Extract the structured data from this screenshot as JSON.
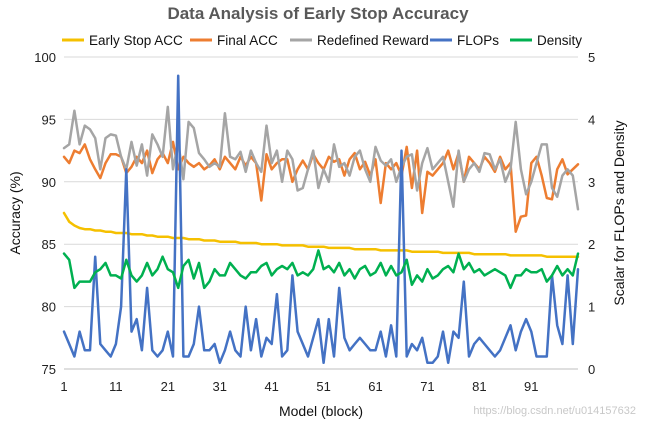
{
  "chart_data": {
    "type": "line",
    "title": "Data Analysis of Early Stop Accuracy",
    "xlabel": "Model (block)",
    "ylabel": "Accuracy (%)",
    "y2label": "Scalar for FLOPs and Density",
    "xlim": [
      1,
      100
    ],
    "ylim": [
      75,
      100
    ],
    "y2lim": [
      0,
      5
    ],
    "x_ticks": [
      1,
      11,
      21,
      31,
      41,
      51,
      61,
      71,
      81,
      91
    ],
    "y_ticks": [
      75,
      80,
      85,
      90,
      95,
      100
    ],
    "y2_ticks": [
      0,
      1,
      2,
      3,
      4,
      5
    ],
    "grid": true,
    "legend_position": "top",
    "series": [
      {
        "name": "Early Stop ACC",
        "color": "#f5c000",
        "axis": "left",
        "values": [
          87.5,
          86.8,
          86.5,
          86.3,
          86.2,
          86.2,
          86.1,
          86.1,
          86.0,
          86.0,
          85.9,
          85.9,
          85.9,
          85.8,
          85.8,
          85.8,
          85.7,
          85.7,
          85.6,
          85.6,
          85.6,
          85.5,
          85.5,
          85.5,
          85.4,
          85.4,
          85.4,
          85.3,
          85.3,
          85.3,
          85.2,
          85.2,
          85.2,
          85.2,
          85.1,
          85.1,
          85.1,
          85.1,
          85.0,
          85.0,
          85.0,
          85.0,
          84.9,
          84.9,
          84.9,
          84.9,
          84.9,
          84.8,
          84.8,
          84.8,
          84.8,
          84.7,
          84.7,
          84.7,
          84.7,
          84.7,
          84.6,
          84.6,
          84.6,
          84.6,
          84.6,
          84.5,
          84.5,
          84.5,
          84.5,
          84.5,
          84.5,
          84.4,
          84.4,
          84.4,
          84.4,
          84.4,
          84.4,
          84.3,
          84.3,
          84.3,
          84.3,
          84.3,
          84.3,
          84.2,
          84.2,
          84.2,
          84.2,
          84.2,
          84.2,
          84.2,
          84.1,
          84.1,
          84.1,
          84.1,
          84.1,
          84.1,
          84.1,
          84.0,
          84.0,
          84.0,
          84.0,
          84.0,
          84.0,
          84.0
        ]
      },
      {
        "name": "Final ACC",
        "color": "#ed7d31",
        "axis": "left",
        "values": [
          92.0,
          91.5,
          92.5,
          92.3,
          93.0,
          91.8,
          91.0,
          90.3,
          91.5,
          92.2,
          92.2,
          92.0,
          90.7,
          91.2,
          92.0,
          91.5,
          92.5,
          90.7,
          91.8,
          92.3,
          91.5,
          93.2,
          91.0,
          92.0,
          91.5,
          91.2,
          91.5,
          91.0,
          91.3,
          91.8,
          91.0,
          92.0,
          91.5,
          91.0,
          92.0,
          91.3,
          92.0,
          91.5,
          88.5,
          92.2,
          91.0,
          91.5,
          91.8,
          91.8,
          90.0,
          91.0,
          91.7,
          91.0,
          92.2,
          91.5,
          91.0,
          92.0,
          91.6,
          91.8,
          90.5,
          91.8,
          92.3,
          91.0,
          91.6,
          90.5,
          91.8,
          88.3,
          91.5,
          91.0,
          91.5,
          90.5,
          92.8,
          89.5,
          92.5,
          87.5,
          90.8,
          90.5,
          91.0,
          91.5,
          92.5,
          91.0,
          92.3,
          90.0,
          92.0,
          91.5,
          91.0,
          92.0,
          91.5,
          90.8,
          92.0,
          91.0,
          91.5,
          86.0,
          87.2,
          87.3,
          91.5,
          92.0,
          90.5,
          88.7,
          88.6,
          91.0,
          91.8,
          90.6,
          91.0,
          91.4
        ]
      },
      {
        "name": "Redefined Reward",
        "color": "#a5a5a5",
        "axis": "left",
        "values": [
          92.7,
          93.0,
          95.7,
          93.0,
          94.5,
          94.2,
          93.5,
          91.0,
          93.5,
          93.8,
          93.7,
          92.0,
          91.0,
          93.2,
          91.3,
          93.0,
          90.5,
          93.8,
          93.0,
          92.0,
          96.0,
          91.0,
          93.2,
          90.2,
          94.8,
          94.3,
          92.3,
          91.8,
          91.2,
          91.5,
          91.2,
          95.5,
          92.0,
          91.8,
          92.4,
          90.8,
          92.5,
          91.5,
          90.8,
          94.5,
          91.5,
          92.5,
          90.0,
          92.5,
          91.8,
          89.3,
          89.5,
          91.0,
          92.5,
          89.5,
          91.0,
          90.0,
          93.0,
          91.2,
          91.5,
          90.5,
          92.0,
          92.5,
          91.0,
          90.0,
          92.8,
          91.7,
          91.3,
          91.8,
          90.0,
          91.2,
          92.0,
          92.2,
          89.3,
          91.5,
          92.7,
          91.0,
          91.5,
          92.0,
          90.0,
          88.0,
          92.5,
          90.0,
          91.0,
          91.5,
          90.8,
          92.3,
          92.2,
          91.0,
          91.8,
          90.0,
          91.0,
          94.8,
          91.0,
          89.0,
          90.0,
          91.5,
          93.0,
          93.0,
          89.5,
          88.8,
          90.5,
          91.0,
          90.5,
          87.8
        ]
      },
      {
        "name": "FLOPs",
        "color": "#4472c4",
        "axis": "right",
        "values": [
          0.6,
          0.4,
          0.2,
          0.6,
          0.3,
          0.3,
          1.8,
          0.4,
          0.3,
          0.2,
          0.4,
          1.0,
          3.2,
          0.6,
          0.8,
          0.3,
          1.3,
          0.3,
          0.2,
          0.3,
          0.6,
          0.2,
          4.7,
          0.2,
          0.2,
          0.4,
          1.0,
          0.3,
          0.3,
          0.4,
          0.1,
          0.3,
          0.6,
          0.3,
          0.2,
          1.0,
          0.3,
          0.8,
          0.2,
          0.5,
          0.4,
          1.2,
          0.2,
          0.3,
          1.5,
          0.6,
          0.4,
          0.2,
          0.5,
          0.8,
          0.1,
          0.8,
          0.2,
          1.3,
          0.5,
          0.3,
          0.4,
          0.5,
          0.4,
          0.3,
          0.3,
          0.6,
          0.2,
          0.7,
          0.2,
          3.5,
          0.2,
          0.4,
          0.3,
          0.5,
          0.1,
          0.1,
          0.2,
          0.6,
          0.1,
          0.6,
          0.5,
          1.4,
          0.2,
          0.4,
          0.5,
          0.4,
          0.3,
          0.2,
          0.3,
          0.5,
          0.7,
          0.3,
          0.6,
          0.8,
          0.6,
          0.2,
          0.2,
          0.2,
          1.5,
          0.7,
          0.4,
          1.5,
          0.4,
          1.6
        ]
      },
      {
        "name": "Density",
        "color": "#00b050",
        "axis": "right",
        "values": [
          1.85,
          1.75,
          1.3,
          1.4,
          1.4,
          1.4,
          1.55,
          1.6,
          1.7,
          1.5,
          1.5,
          1.45,
          1.75,
          1.5,
          1.4,
          1.5,
          1.7,
          1.5,
          1.6,
          1.8,
          1.6,
          1.55,
          1.3,
          1.65,
          1.75,
          1.45,
          1.7,
          1.3,
          1.4,
          1.6,
          1.5,
          1.5,
          1.7,
          1.6,
          1.5,
          1.45,
          1.55,
          1.55,
          1.65,
          1.7,
          1.5,
          1.6,
          1.65,
          1.6,
          1.7,
          1.5,
          1.55,
          1.5,
          1.6,
          1.9,
          1.6,
          1.65,
          1.55,
          1.7,
          1.5,
          1.6,
          1.45,
          1.6,
          1.65,
          1.5,
          1.55,
          1.7,
          1.5,
          1.65,
          1.5,
          1.55,
          1.75,
          1.35,
          1.5,
          1.4,
          1.6,
          1.45,
          1.5,
          1.6,
          1.65,
          1.55,
          1.85,
          1.6,
          1.7,
          1.55,
          1.6,
          1.5,
          1.55,
          1.6,
          1.55,
          1.5,
          1.3,
          1.5,
          1.5,
          1.6,
          1.55,
          1.55,
          1.6,
          1.4,
          1.5,
          1.65,
          1.5,
          1.6,
          1.5,
          1.85
        ]
      }
    ]
  },
  "watermark": "https://blog.csdn.net/u014157632"
}
